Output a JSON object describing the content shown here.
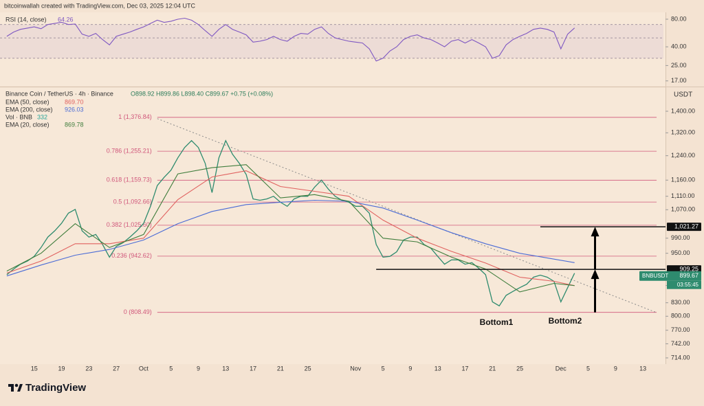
{
  "header": "bitcoinwallah created with TradingView.com, Dec 03, 2025 12:04 UTC",
  "footer_brand": "TradingView",
  "chart_data": [
    {
      "type": "line",
      "log_scale": true,
      "grid": false,
      "xlim": [
        "2025-09-10",
        "2025-12-16"
      ],
      "ylim": [
        15,
        95
      ],
      "yticks": [
        {
          "value": 80,
          "label": "80.00"
        },
        {
          "value": 40,
          "label": "40.00"
        },
        {
          "value": 25,
          "label": "25.00"
        },
        {
          "value": 17,
          "label": "17.00"
        }
      ],
      "bands": [
        70,
        50,
        30
      ],
      "band_color": "#7e57c2",
      "x": [
        "2025-09-11",
        "2025-09-12",
        "2025-09-13",
        "2025-09-14",
        "2025-09-15",
        "2025-09-16",
        "2025-09-17",
        "2025-09-18",
        "2025-09-19",
        "2025-09-20",
        "2025-09-21",
        "2025-09-22",
        "2025-09-23",
        "2025-09-24",
        "2025-09-25",
        "2025-09-26",
        "2025-09-27",
        "2025-09-28",
        "2025-09-29",
        "2025-09-30",
        "2025-10-01",
        "2025-10-02",
        "2025-10-03",
        "2025-10-04",
        "2025-10-05",
        "2025-10-06",
        "2025-10-07",
        "2025-10-08",
        "2025-10-09",
        "2025-10-10",
        "2025-10-11",
        "2025-10-12",
        "2025-10-13",
        "2025-10-14",
        "2025-10-15",
        "2025-10-16",
        "2025-10-17",
        "2025-10-18",
        "2025-10-19",
        "2025-10-20",
        "2025-10-21",
        "2025-10-22",
        "2025-10-23",
        "2025-10-24",
        "2025-10-25",
        "2025-10-26",
        "2025-10-27",
        "2025-10-28",
        "2025-10-29",
        "2025-10-30",
        "2025-10-31",
        "2025-11-01",
        "2025-11-02",
        "2025-11-03",
        "2025-11-04",
        "2025-11-05",
        "2025-11-06",
        "2025-11-07",
        "2025-11-08",
        "2025-11-09",
        "2025-11-10",
        "2025-11-11",
        "2025-11-12",
        "2025-11-13",
        "2025-11-14",
        "2025-11-15",
        "2025-11-16",
        "2025-11-17",
        "2025-11-18",
        "2025-11-19",
        "2025-11-20",
        "2025-11-21",
        "2025-11-22",
        "2025-11-23",
        "2025-11-24",
        "2025-11-25",
        "2025-11-26",
        "2025-11-27",
        "2025-11-28",
        "2025-11-29",
        "2025-11-30",
        "2025-12-01",
        "2025-12-02",
        "2025-12-03"
      ],
      "series": [
        {
          "name": "RSI (14, close)",
          "color": "#7e57c2",
          "value_label": "64.26",
          "values": [
            52,
            58,
            62,
            64,
            66,
            63,
            70,
            72,
            74,
            70,
            71,
            55,
            52,
            56,
            48,
            42,
            52,
            55,
            58,
            62,
            66,
            72,
            78,
            74,
            76,
            80,
            82,
            78,
            70,
            60,
            52,
            62,
            70,
            62,
            58,
            54,
            45,
            46,
            48,
            52,
            48,
            46,
            52,
            56,
            55,
            62,
            66,
            56,
            50,
            48,
            46,
            45,
            44,
            38,
            28,
            30,
            36,
            40,
            48,
            52,
            54,
            50,
            48,
            44,
            40,
            46,
            48,
            44,
            48,
            44,
            40,
            30,
            32,
            42,
            48,
            52,
            56,
            62,
            64,
            62,
            58,
            38,
            55,
            64.26
          ]
        }
      ]
    },
    {
      "type": "line",
      "log_scale": true,
      "grid": false,
      "title": "Binance Coin / TetherUS · 4h · Binance",
      "ohlc": "O898.92 H899.86 L898.40 C899.67 +0.75 (+0.08%)",
      "currency": "USDT",
      "volume_legend": "Vol · BNB",
      "volume_value": "332",
      "volume_color": "#26a69a",
      "countdown": "03:55:45",
      "xlim": [
        "2025-09-10",
        "2025-12-16"
      ],
      "ylim": [
        702,
        1492
      ],
      "yticks": [
        {
          "value": 1400,
          "label": "1,400.00"
        },
        {
          "value": 1320,
          "label": "1,320.00"
        },
        {
          "value": 1240,
          "label": "1,240.00"
        },
        {
          "value": 1160,
          "label": "1,160.00"
        },
        {
          "value": 1110,
          "label": "1,110.00"
        },
        {
          "value": 1070,
          "label": "1,070.00"
        },
        {
          "value": 990,
          "label": "990.00"
        },
        {
          "value": 950,
          "label": "950.00"
        },
        {
          "value": 870,
          "label": "870.00"
        },
        {
          "value": 830,
          "label": "830.00"
        },
        {
          "value": 800,
          "label": "800.00"
        },
        {
          "value": 770,
          "label": "770.00"
        },
        {
          "value": 742,
          "label": "742.00"
        },
        {
          "value": 714,
          "label": "714.00"
        }
      ],
      "xticks": [
        {
          "value": "2025-09-15",
          "label": "15"
        },
        {
          "value": "2025-09-19",
          "label": "19"
        },
        {
          "value": "2025-09-23",
          "label": "23"
        },
        {
          "value": "2025-09-27",
          "label": "27"
        },
        {
          "value": "2025-10-01",
          "label": "Oct"
        },
        {
          "value": "2025-10-05",
          "label": "5"
        },
        {
          "value": "2025-10-09",
          "label": "9"
        },
        {
          "value": "2025-10-13",
          "label": "13"
        },
        {
          "value": "2025-10-17",
          "label": "17"
        },
        {
          "value": "2025-10-21",
          "label": "21"
        },
        {
          "value": "2025-10-25",
          "label": "25"
        },
        {
          "value": "2025-11-01",
          "label": "Nov"
        },
        {
          "value": "2025-11-05",
          "label": "5"
        },
        {
          "value": "2025-11-09",
          "label": "9"
        },
        {
          "value": "2025-11-13",
          "label": "13"
        },
        {
          "value": "2025-11-17",
          "label": "17"
        },
        {
          "value": "2025-11-21",
          "label": "21"
        },
        {
          "value": "2025-11-25",
          "label": "25"
        },
        {
          "value": "2025-12-01",
          "label": "Dec"
        },
        {
          "value": "2025-12-05",
          "label": "5"
        },
        {
          "value": "2025-12-09",
          "label": "9"
        },
        {
          "value": "2025-12-13",
          "label": "13"
        }
      ],
      "x": [
        "2025-09-11",
        "2025-09-12",
        "2025-09-13",
        "2025-09-14",
        "2025-09-15",
        "2025-09-16",
        "2025-09-17",
        "2025-09-18",
        "2025-09-19",
        "2025-09-20",
        "2025-09-21",
        "2025-09-22",
        "2025-09-23",
        "2025-09-24",
        "2025-09-25",
        "2025-09-26",
        "2025-09-27",
        "2025-09-28",
        "2025-09-29",
        "2025-09-30",
        "2025-10-01",
        "2025-10-02",
        "2025-10-03",
        "2025-10-04",
        "2025-10-05",
        "2025-10-06",
        "2025-10-07",
        "2025-10-08",
        "2025-10-09",
        "2025-10-10",
        "2025-10-11",
        "2025-10-12",
        "2025-10-13",
        "2025-10-14",
        "2025-10-15",
        "2025-10-16",
        "2025-10-17",
        "2025-10-18",
        "2025-10-19",
        "2025-10-20",
        "2025-10-21",
        "2025-10-22",
        "2025-10-23",
        "2025-10-24",
        "2025-10-25",
        "2025-10-26",
        "2025-10-27",
        "2025-10-28",
        "2025-10-29",
        "2025-10-30",
        "2025-10-31",
        "2025-11-01",
        "2025-11-02",
        "2025-11-03",
        "2025-11-04",
        "2025-11-05",
        "2025-11-06",
        "2025-11-07",
        "2025-11-08",
        "2025-11-09",
        "2025-11-10",
        "2025-11-11",
        "2025-11-12",
        "2025-11-13",
        "2025-11-14",
        "2025-11-15",
        "2025-11-16",
        "2025-11-17",
        "2025-11-18",
        "2025-11-19",
        "2025-11-20",
        "2025-11-21",
        "2025-11-22",
        "2025-11-23",
        "2025-11-24",
        "2025-11-25",
        "2025-11-26",
        "2025-11-27",
        "2025-11-28",
        "2025-11-29",
        "2025-11-30",
        "2025-12-01",
        "2025-12-02",
        "2025-12-03"
      ],
      "series": [
        {
          "name": "BNBUSDT",
          "color": "#2e8b6e",
          "value_label": "899.67",
          "values": [
            896,
            910,
            922,
            930,
            942,
            965,
            993,
            1010,
            1031,
            1060,
            1071,
            1010,
            993,
            1000,
            973,
            940,
            968,
            978,
            993,
            1010,
            1031,
            1080,
            1143,
            1169,
            1192,
            1233,
            1268,
            1292,
            1268,
            1214,
            1121,
            1233,
            1292,
            1245,
            1214,
            1178,
            1102,
            1098,
            1102,
            1110,
            1092,
            1080,
            1102,
            1110,
            1110,
            1138,
            1160,
            1132,
            1110,
            1098,
            1092,
            1080,
            1080,
            1060,
            973,
            940,
            942,
            954,
            985,
            993,
            993,
            973,
            963,
            942,
            922,
            933,
            933,
            922,
            926,
            912,
            896,
            832,
            823,
            847,
            856,
            865,
            873,
            890,
            895,
            890,
            880,
            832,
            865,
            899.67
          ]
        },
        {
          "name": "EMA (50, close)",
          "color": "#e0605e",
          "value_label": "869.70",
          "x": [
            "2025-09-11",
            "2025-09-16",
            "2025-09-21",
            "2025-09-26",
            "2025-10-01",
            "2025-10-06",
            "2025-10-11",
            "2025-10-16",
            "2025-10-21",
            "2025-10-26",
            "2025-10-31",
            "2025-11-05",
            "2025-11-10",
            "2025-11-15",
            "2025-11-20",
            "2025-11-25",
            "2025-11-30",
            "2025-12-03"
          ],
          "values": [
            900,
            930,
            975,
            975,
            990,
            1100,
            1170,
            1190,
            1140,
            1125,
            1110,
            1040,
            990,
            955,
            925,
            890,
            880,
            869.7
          ]
        },
        {
          "name": "EMA (200, close)",
          "color": "#4a6bd6",
          "value_label": "926.03",
          "x": [
            "2025-09-11",
            "2025-09-16",
            "2025-09-21",
            "2025-09-26",
            "2025-10-01",
            "2025-10-06",
            "2025-10-11",
            "2025-10-16",
            "2025-10-21",
            "2025-10-26",
            "2025-10-31",
            "2025-11-05",
            "2025-11-10",
            "2025-11-15",
            "2025-11-20",
            "2025-11-25",
            "2025-11-30",
            "2025-12-03"
          ],
          "values": [
            893,
            920,
            945,
            960,
            985,
            1030,
            1065,
            1085,
            1092,
            1098,
            1095,
            1075,
            1040,
            1005,
            975,
            950,
            935,
            926.03
          ]
        },
        {
          "name": "EMA (20, close)",
          "color": "#3f7d3c",
          "value_label": "869.78",
          "x": [
            "2025-09-11",
            "2025-09-16",
            "2025-09-21",
            "2025-09-26",
            "2025-10-01",
            "2025-10-06",
            "2025-10-11",
            "2025-10-16",
            "2025-10-21",
            "2025-10-26",
            "2025-10-31",
            "2025-11-05",
            "2025-11-10",
            "2025-11-15",
            "2025-11-20",
            "2025-11-25",
            "2025-11-30",
            "2025-12-03"
          ],
          "values": [
            905,
            950,
            1030,
            965,
            1000,
            1180,
            1200,
            1210,
            1105,
            1115,
            1095,
            990,
            980,
            940,
            910,
            855,
            875,
            869.78
          ]
        }
      ],
      "fib_color": "#d0567a",
      "fib_range": [
        "2025-10-03",
        "2025-12-15"
      ],
      "fib_levels": [
        {
          "value": 1376.84,
          "label": "1 (1,376.84)"
        },
        {
          "value": 1255.21,
          "label": "0.786 (1,255.21)"
        },
        {
          "value": 1159.73,
          "label": "0.618 (1,159.73)"
        },
        {
          "value": 1092.66,
          "label": "0.5 (1,092.66)"
        },
        {
          "value": 1025.6,
          "label": "0.382 (1,025.60)"
        },
        {
          "value": 942.62,
          "label": "0.236 (942.62)"
        },
        {
          "value": 808.49,
          "label": "0 (808.49)"
        }
      ],
      "trendline": {
        "x": [
          "2025-10-03",
          "2025-12-15"
        ],
        "values": [
          1372,
          808
        ]
      },
      "hlines": [
        {
          "value": 1021.27,
          "label": "1,021.27",
          "from": "2025-11-28"
        },
        {
          "value": 909.25,
          "label": "909.25",
          "from": "2025-11-04"
        }
      ],
      "arrows": [
        {
          "x": "2025-12-06",
          "values": [
            808.49,
            909.25
          ]
        },
        {
          "x": "2025-12-06",
          "values": [
            909.25,
            1021.27
          ]
        }
      ],
      "annotations": [
        "Bottom1",
        "Bottom2"
      ]
    }
  ]
}
